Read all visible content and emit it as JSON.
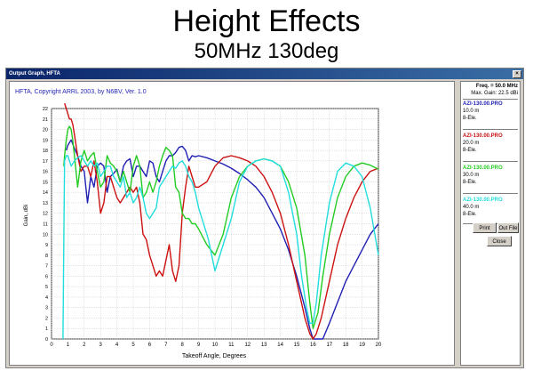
{
  "slide": {
    "title": "Height Effects",
    "subtitle": "50MHz 130deg"
  },
  "window": {
    "title": "Output Graph, HFTA",
    "close_glyph": "×"
  },
  "sidebar": {
    "freq": "Freq. = 50.0 MHz",
    "max_gain": "Max. Gain: 22.5 dBi",
    "files": [
      {
        "name": "AZI-130.00.PRO",
        "height": "10.0 m",
        "elements": "8-Ele.",
        "color": "#1f1fb4"
      },
      {
        "name": "AZI-130.00.PRO",
        "height": "20.0 m",
        "elements": "8-Ele.",
        "color": "#cc1111"
      },
      {
        "name": "AZI-130.00.PRO",
        "height": "30.0 m",
        "elements": "8-Ele.",
        "color": "#22cc22"
      },
      {
        "name": "AZI-130.00.PRO",
        "height": "40.0 m",
        "elements": "8-Ele.",
        "color": "#22dddd"
      }
    ],
    "buttons": {
      "print": "Print",
      "out_file": "Out File",
      "close": "Close"
    }
  },
  "chart_data": {
    "type": "line",
    "title": "HFTA, Copyright ARRL 2003, by N6BV, Ver. 1.0",
    "xlabel": "Takeoff Angle, Degrees",
    "ylabel": "Gain, dBi",
    "xlim": [
      0,
      20
    ],
    "ylim": [
      0,
      22
    ],
    "x_ticks": [
      0,
      1,
      2,
      3,
      4,
      5,
      6,
      7,
      8,
      9,
      10,
      11,
      12,
      13,
      14,
      15,
      16,
      17,
      18,
      19,
      20
    ],
    "y_ticks": [
      0,
      1,
      2,
      3,
      4,
      5,
      6,
      7,
      8,
      9,
      10,
      11,
      12,
      13,
      14,
      15,
      16,
      17,
      18,
      19,
      20,
      21,
      22
    ],
    "grid": true,
    "series": [
      {
        "name": "AZI-130.00.PRO 10.0 m",
        "color": "#1f1fb4",
        "x": [
          0.9,
          1.0,
          1.2,
          1.4,
          1.6,
          1.8,
          2.0,
          2.2,
          2.4,
          2.6,
          2.8,
          3.0,
          3.2,
          3.4,
          3.6,
          3.8,
          4.0,
          4.2,
          4.4,
          4.6,
          4.8,
          5.0,
          5.2,
          5.4,
          5.6,
          5.8,
          6.0,
          6.2,
          6.4,
          6.6,
          6.8,
          7.0,
          7.2,
          7.4,
          7.6,
          7.8,
          8.0,
          8.2,
          8.4,
          8.6,
          8.8,
          9.0,
          9.5,
          10.0,
          10.5,
          11.0,
          11.5,
          12.0,
          12.5,
          13.0,
          13.5,
          14.0,
          14.5,
          15.0,
          15.5,
          15.8,
          16.0,
          16.3,
          16.6,
          17.0,
          17.5,
          18.0,
          18.5,
          19.0,
          19.5,
          20.0
        ],
        "y": [
          18.0,
          18.5,
          19.0,
          18.2,
          17.5,
          16.5,
          16.0,
          13.0,
          15.5,
          14.5,
          16.5,
          16.8,
          16.5,
          14.0,
          15.5,
          15.8,
          16.2,
          15.0,
          16.5,
          17.0,
          17.2,
          15.5,
          16.5,
          16.5,
          16.0,
          15.5,
          17.0,
          16.8,
          15.5,
          15.0,
          16.0,
          17.0,
          17.5,
          17.5,
          17.8,
          18.3,
          18.4,
          18.0,
          17.0,
          17.5,
          17.4,
          17.5,
          17.3,
          17.0,
          16.7,
          16.3,
          15.8,
          15.2,
          14.5,
          13.5,
          12.0,
          10.5,
          8.5,
          6.0,
          3.0,
          1.0,
          0.0,
          0.0,
          0.0,
          1.5,
          3.5,
          5.5,
          7.0,
          8.5,
          10.0,
          11.0
        ]
      },
      {
        "name": "AZI-130.00.PRO 20.0 m",
        "color": "#cc1111",
        "x": [
          0.8,
          0.9,
          1.0,
          1.1,
          1.2,
          1.3,
          1.4,
          1.6,
          1.8,
          2.0,
          2.2,
          2.4,
          2.6,
          2.8,
          3.0,
          3.2,
          3.4,
          3.6,
          3.8,
          4.0,
          4.2,
          4.4,
          4.6,
          4.8,
          5.0,
          5.2,
          5.4,
          5.6,
          5.8,
          6.0,
          6.2,
          6.4,
          6.6,
          6.8,
          7.0,
          7.2,
          7.4,
          7.6,
          7.8,
          8.0,
          8.2,
          8.4,
          8.6,
          8.8,
          9.0,
          9.5,
          10.0,
          10.5,
          11.0,
          11.5,
          12.0,
          12.5,
          13.0,
          13.5,
          14.0,
          14.5,
          15.0,
          15.5,
          15.8,
          16.0,
          16.2,
          16.5,
          17.0,
          17.5,
          18.0,
          18.5,
          19.0,
          19.5,
          20.0
        ],
        "y": [
          22.5,
          22.0,
          21.5,
          21.0,
          21.0,
          20.5,
          19.5,
          17.5,
          16.0,
          16.5,
          16.5,
          15.5,
          17.0,
          15.0,
          12.0,
          13.0,
          15.5,
          15.5,
          14.5,
          13.5,
          13.0,
          13.5,
          14.0,
          14.5,
          14.0,
          14.5,
          13.0,
          10.0,
          9.5,
          8.0,
          7.0,
          6.0,
          6.5,
          6.0,
          7.5,
          9.0,
          6.5,
          5.5,
          7.0,
          12.0,
          14.5,
          16.5,
          15.5,
          14.5,
          14.5,
          15.0,
          16.5,
          17.3,
          17.5,
          17.3,
          17.0,
          16.5,
          15.5,
          14.0,
          12.0,
          9.0,
          5.5,
          2.0,
          0.5,
          0.0,
          0.5,
          2.0,
          5.5,
          9.0,
          11.5,
          13.5,
          15.0,
          16.0,
          16.3
        ]
      },
      {
        "name": "AZI-130.00.PRO 30.0 m",
        "color": "#22cc22",
        "x": [
          0.75,
          0.8,
          0.9,
          1.0,
          1.1,
          1.2,
          1.3,
          1.4,
          1.5,
          1.6,
          1.8,
          2.0,
          2.2,
          2.4,
          2.6,
          2.8,
          3.0,
          3.2,
          3.4,
          3.6,
          3.8,
          4.0,
          4.2,
          4.4,
          4.6,
          4.8,
          5.0,
          5.2,
          5.4,
          5.6,
          5.8,
          6.0,
          6.2,
          6.4,
          6.6,
          6.8,
          7.0,
          7.2,
          7.4,
          7.6,
          7.8,
          8.0,
          8.2,
          8.4,
          8.6,
          8.8,
          9.0,
          9.5,
          10.0,
          10.5,
          11.0,
          11.5,
          12.0,
          12.5,
          13.0,
          13.5,
          14.0,
          14.5,
          15.0,
          15.5,
          15.8,
          16.0,
          16.3,
          16.6,
          17.0,
          17.5,
          18.0,
          18.5,
          19.0,
          19.5,
          20.0
        ],
        "y": [
          16.5,
          17.5,
          19.0,
          20.0,
          20.3,
          20.0,
          19.0,
          17.5,
          16.0,
          14.5,
          17.0,
          18.0,
          17.0,
          17.5,
          17.8,
          16.0,
          14.5,
          15.0,
          17.5,
          16.8,
          16.5,
          16.0,
          15.0,
          16.0,
          15.0,
          14.0,
          16.5,
          17.5,
          16.5,
          13.5,
          14.0,
          15.0,
          14.0,
          15.0,
          16.5,
          17.5,
          18.3,
          18.0,
          17.5,
          14.5,
          14.0,
          12.0,
          11.5,
          11.5,
          11.0,
          11.0,
          10.5,
          9.0,
          8.0,
          10.0,
          13.5,
          15.5,
          16.5,
          17.0,
          17.2,
          17.0,
          16.5,
          15.0,
          12.5,
          8.0,
          3.5,
          1.0,
          2.5,
          6.0,
          10.0,
          13.5,
          15.5,
          16.5,
          16.8,
          16.6,
          16.2
        ]
      },
      {
        "name": "AZI-130.00.PRO 40.0 m",
        "color": "#22dddd",
        "x": [
          0.7,
          0.75,
          0.8,
          0.9,
          1.0,
          1.2,
          1.4,
          1.6,
          1.8,
          2.0,
          2.2,
          2.4,
          2.6,
          2.8,
          3.0,
          3.2,
          3.4,
          3.6,
          3.8,
          4.0,
          4.2,
          4.4,
          4.6,
          4.8,
          5.0,
          5.2,
          5.4,
          5.6,
          5.8,
          6.0,
          6.2,
          6.4,
          6.6,
          6.8,
          7.0,
          7.2,
          7.4,
          7.6,
          7.8,
          8.0,
          8.2,
          8.4,
          8.6,
          8.8,
          9.0,
          9.2,
          9.4,
          9.6,
          9.8,
          10.0,
          10.5,
          11.0,
          11.5,
          12.0,
          12.5,
          13.0,
          13.5,
          14.0,
          14.5,
          15.0,
          15.3,
          15.6,
          15.8,
          16.0,
          16.2,
          16.5,
          17.0,
          17.5,
          18.0,
          18.5,
          19.0,
          19.5,
          20.0
        ],
        "y": [
          0.0,
          9.0,
          17.0,
          17.5,
          17.5,
          16.5,
          17.0,
          17.3,
          17.5,
          17.0,
          16.5,
          17.0,
          16.5,
          16.8,
          15.5,
          16.0,
          16.5,
          16.5,
          15.5,
          15.0,
          14.5,
          15.5,
          13.5,
          14.0,
          13.0,
          13.5,
          14.5,
          13.5,
          12.0,
          11.5,
          12.0,
          12.5,
          14.5,
          15.0,
          15.5,
          16.0,
          16.5,
          16.3,
          16.8,
          17.0,
          16.5,
          15.5,
          15.0,
          14.0,
          12.5,
          11.5,
          10.5,
          9.5,
          8.0,
          6.5,
          9.0,
          11.5,
          15.0,
          16.5,
          17.0,
          17.2,
          17.0,
          16.5,
          14.0,
          10.0,
          6.0,
          3.0,
          1.5,
          1.5,
          3.5,
          8.0,
          13.0,
          16.0,
          16.8,
          16.5,
          15.5,
          12.5,
          8.0
        ]
      }
    ]
  }
}
